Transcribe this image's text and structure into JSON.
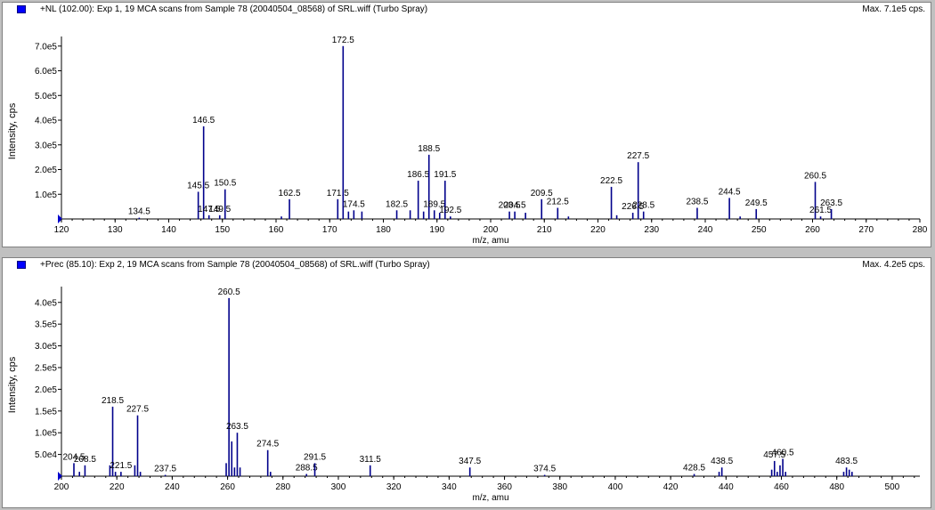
{
  "panels": [
    {
      "title": "+NL (102.00): Exp 1, 19 MCA scans from Sample 78 (20040504_08568) of SRL.wiff (Turbo Spray)",
      "max_label": "Max. 7.1e5 cps."
    },
    {
      "title": "+Prec (85.10): Exp 2, 19 MCA scans from Sample 78 (20040504_08568) of SRL.wiff (Turbo Spray)",
      "max_label": "Max. 4.2e5 cps."
    }
  ],
  "colors": {
    "peak": "#00008b",
    "label": "#000000",
    "window_bg": "#c0c0c0",
    "marker": "#0000ff"
  },
  "chart_data": [
    {
      "type": "bar",
      "xlabel": "m/z, amu",
      "ylabel": "Intensity, cps",
      "xlim": [
        120,
        280
      ],
      "ylim": [
        0,
        710000.0
      ],
      "xticks": [
        120,
        130,
        140,
        150,
        160,
        170,
        180,
        190,
        200,
        210,
        220,
        230,
        240,
        250,
        260,
        270,
        280
      ],
      "yticks": [
        {
          "v": 100000,
          "t": "1.0e5"
        },
        {
          "v": 200000,
          "t": "2.0e5"
        },
        {
          "v": 300000,
          "t": "3.0e5"
        },
        {
          "v": 400000,
          "t": "4.0e5"
        },
        {
          "v": 500000,
          "t": "5.0e5"
        },
        {
          "v": 600000,
          "t": "6.0e5"
        },
        {
          "v": 700000,
          "t": "7.0e5"
        }
      ],
      "peaks": [
        {
          "x": 134.5,
          "y": 5000,
          "label": "134.5"
        },
        {
          "x": 145.5,
          "y": 110000,
          "label": "145.5"
        },
        {
          "x": 146.5,
          "y": 375000,
          "label": "146.5"
        },
        {
          "x": 147.5,
          "y": 15000,
          "label": "147.5"
        },
        {
          "x": 149.5,
          "y": 15000,
          "label": "149.5"
        },
        {
          "x": 150.5,
          "y": 120000,
          "label": "150.5"
        },
        {
          "x": 161.0,
          "y": 10000
        },
        {
          "x": 162.5,
          "y": 80000,
          "label": "162.5"
        },
        {
          "x": 171.5,
          "y": 80000,
          "label": "171.5"
        },
        {
          "x": 172.5,
          "y": 700000,
          "label": "172.5"
        },
        {
          "x": 173.5,
          "y": 30000
        },
        {
          "x": 174.5,
          "y": 35000,
          "label": "174.5"
        },
        {
          "x": 176.0,
          "y": 30000
        },
        {
          "x": 182.5,
          "y": 35000,
          "label": "182.5"
        },
        {
          "x": 185.0,
          "y": 35000
        },
        {
          "x": 186.5,
          "y": 155000,
          "label": "186.5"
        },
        {
          "x": 187.5,
          "y": 30000
        },
        {
          "x": 188.5,
          "y": 260000,
          "label": "188.5"
        },
        {
          "x": 189.5,
          "y": 35000,
          "label": "189.5"
        },
        {
          "x": 190.5,
          "y": 25000
        },
        {
          "x": 191.5,
          "y": 155000,
          "label": "191.5"
        },
        {
          "x": 192.5,
          "y": 10000,
          "label": "192.5"
        },
        {
          "x": 203.5,
          "y": 30000,
          "label": "203.5"
        },
        {
          "x": 204.5,
          "y": 30000,
          "label": "204.5"
        },
        {
          "x": 206.5,
          "y": 25000
        },
        {
          "x": 209.5,
          "y": 80000,
          "label": "209.5"
        },
        {
          "x": 212.5,
          "y": 45000,
          "label": "212.5"
        },
        {
          "x": 214.5,
          "y": 10000
        },
        {
          "x": 222.5,
          "y": 130000,
          "label": "222.5"
        },
        {
          "x": 223.5,
          "y": 15000
        },
        {
          "x": 226.5,
          "y": 25000,
          "label": "226.5"
        },
        {
          "x": 227.5,
          "y": 230000,
          "label": "227.5"
        },
        {
          "x": 228.5,
          "y": 30000,
          "label": "228.5"
        },
        {
          "x": 238.5,
          "y": 45000,
          "label": "238.5"
        },
        {
          "x": 244.5,
          "y": 85000,
          "label": "244.5"
        },
        {
          "x": 246.5,
          "y": 10000
        },
        {
          "x": 249.5,
          "y": 40000,
          "label": "249.5"
        },
        {
          "x": 260.5,
          "y": 150000,
          "label": "260.5"
        },
        {
          "x": 261.5,
          "y": 10000,
          "label": "261.5"
        },
        {
          "x": 263.5,
          "y": 40000,
          "label": "263.5"
        }
      ]
    },
    {
      "type": "bar",
      "xlabel": "m/z, amu",
      "ylabel": "Intensity, cps",
      "xlim": [
        200,
        510
      ],
      "ylim": [
        0,
        420000.0
      ],
      "xticks": [
        200,
        220,
        240,
        260,
        280,
        300,
        320,
        340,
        360,
        380,
        400,
        420,
        440,
        460,
        480,
        500
      ],
      "yticks": [
        {
          "v": 50000,
          "t": "5.0e4"
        },
        {
          "v": 100000,
          "t": "1.0e5"
        },
        {
          "v": 150000,
          "t": "1.5e5"
        },
        {
          "v": 200000,
          "t": "2.0e5"
        },
        {
          "v": 250000,
          "t": "2.5e5"
        },
        {
          "v": 300000,
          "t": "3.0e5"
        },
        {
          "v": 350000,
          "t": "3.5e5"
        },
        {
          "v": 400000,
          "t": "4.0e5"
        }
      ],
      "peaks": [
        {
          "x": 204.5,
          "y": 30000,
          "label": "204.5"
        },
        {
          "x": 206.5,
          "y": 10000
        },
        {
          "x": 208.5,
          "y": 25000,
          "label": "208.5"
        },
        {
          "x": 217.5,
          "y": 25000
        },
        {
          "x": 218.5,
          "y": 160000,
          "label": "218.5"
        },
        {
          "x": 219.5,
          "y": 10000
        },
        {
          "x": 221.5,
          "y": 10000,
          "label": "221.5"
        },
        {
          "x": 226.5,
          "y": 25000
        },
        {
          "x": 227.5,
          "y": 140000,
          "label": "227.5"
        },
        {
          "x": 228.5,
          "y": 10000
        },
        {
          "x": 237.5,
          "y": 3000,
          "label": "237.5"
        },
        {
          "x": 259.5,
          "y": 30000
        },
        {
          "x": 260.5,
          "y": 410000,
          "label": "260.5"
        },
        {
          "x": 261.5,
          "y": 80000
        },
        {
          "x": 262.5,
          "y": 20000
        },
        {
          "x": 263.5,
          "y": 100000,
          "label": "263.5"
        },
        {
          "x": 264.5,
          "y": 20000
        },
        {
          "x": 274.5,
          "y": 60000,
          "label": "274.5"
        },
        {
          "x": 275.5,
          "y": 10000
        },
        {
          "x": 288.5,
          "y": 5000,
          "label": "288.5"
        },
        {
          "x": 291.5,
          "y": 30000,
          "label": "291.5"
        },
        {
          "x": 311.5,
          "y": 25000,
          "label": "311.5"
        },
        {
          "x": 347.5,
          "y": 20000,
          "label": "347.5"
        },
        {
          "x": 374.5,
          "y": 3000,
          "label": "374.5"
        },
        {
          "x": 428.5,
          "y": 5000,
          "label": "428.5"
        },
        {
          "x": 437.5,
          "y": 10000
        },
        {
          "x": 438.5,
          "y": 20000,
          "label": "438.5"
        },
        {
          "x": 456.5,
          "y": 15000
        },
        {
          "x": 457.5,
          "y": 35000,
          "label": "457.5"
        },
        {
          "x": 458.5,
          "y": 10000
        },
        {
          "x": 459.5,
          "y": 25000
        },
        {
          "x": 460.5,
          "y": 40000,
          "label": "460.5"
        },
        {
          "x": 461.5,
          "y": 10000
        },
        {
          "x": 482.5,
          "y": 10000
        },
        {
          "x": 483.5,
          "y": 20000,
          "label": "483.5"
        },
        {
          "x": 484.5,
          "y": 15000
        },
        {
          "x": 485.5,
          "y": 10000
        }
      ]
    }
  ]
}
